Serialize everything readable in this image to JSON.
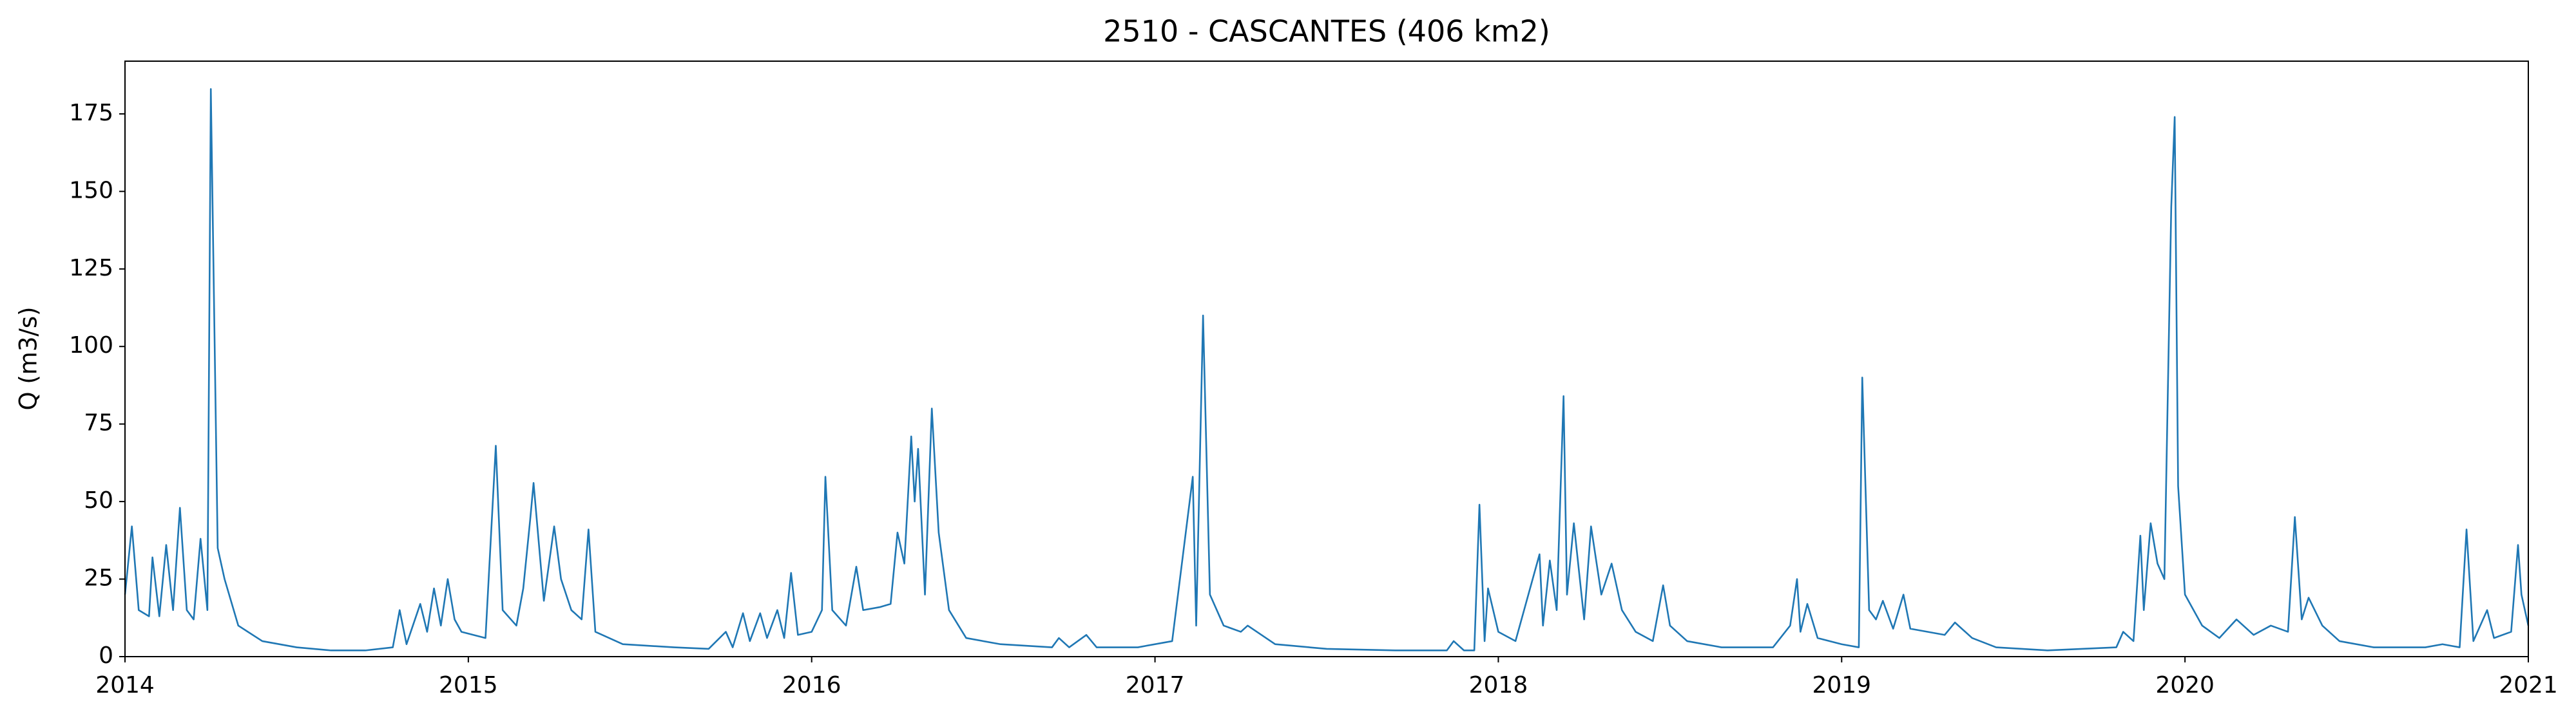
{
  "chart_data": {
    "type": "line",
    "title": "2510 - CASCANTES (406 km2)",
    "y_label": "Q (m3/s)",
    "color": "#1f77b4",
    "xlim": [
      2014,
      2021
    ],
    "xticks": [
      2014,
      2015,
      2016,
      2017,
      2018,
      2019,
      2020,
      2021
    ],
    "ylim": [
      0,
      192
    ],
    "yticks": [
      0,
      25,
      50,
      75,
      100,
      125,
      150,
      175
    ],
    "grid": false,
    "x": [
      2014.0,
      2014.02,
      2014.04,
      2014.07,
      2014.08,
      2014.1,
      2014.12,
      2014.14,
      2014.16,
      2014.18,
      2014.2,
      2014.22,
      2014.24,
      2014.25,
      2014.27,
      2014.29,
      2014.33,
      2014.4,
      2014.5,
      2014.6,
      2014.7,
      2014.78,
      2014.8,
      2014.82,
      2014.86,
      2014.88,
      2014.9,
      2014.92,
      2014.94,
      2014.96,
      2014.98,
      2015.05,
      2015.08,
      2015.1,
      2015.14,
      2015.16,
      2015.18,
      2015.19,
      2015.22,
      2015.25,
      2015.27,
      2015.3,
      2015.33,
      2015.35,
      2015.37,
      2015.45,
      2015.6,
      2015.7,
      2015.75,
      2015.77,
      2015.8,
      2015.82,
      2015.85,
      2015.87,
      2015.9,
      2015.92,
      2015.94,
      2015.96,
      2016.0,
      2016.03,
      2016.04,
      2016.06,
      2016.1,
      2016.13,
      2016.15,
      2016.2,
      2016.23,
      2016.25,
      2016.27,
      2016.29,
      2016.3,
      2016.31,
      2016.33,
      2016.35,
      2016.37,
      2016.4,
      2016.45,
      2016.55,
      2016.7,
      2016.72,
      2016.75,
      2016.8,
      2016.83,
      2016.95,
      2017.05,
      2017.11,
      2017.12,
      2017.14,
      2017.16,
      2017.2,
      2017.25,
      2017.27,
      2017.35,
      2017.5,
      2017.7,
      2017.85,
      2017.87,
      2017.9,
      2017.93,
      2017.945,
      2017.96,
      2017.97,
      2018.0,
      2018.05,
      2018.12,
      2018.13,
      2018.15,
      2018.17,
      2018.19,
      2018.2,
      2018.22,
      2018.25,
      2018.27,
      2018.3,
      2018.33,
      2018.36,
      2018.4,
      2018.45,
      2018.48,
      2018.5,
      2018.55,
      2018.65,
      2018.8,
      2018.85,
      2018.87,
      2018.88,
      2018.9,
      2018.93,
      2019.0,
      2019.05,
      2019.06,
      2019.08,
      2019.1,
      2019.12,
      2019.15,
      2019.18,
      2019.2,
      2019.3,
      2019.33,
      2019.38,
      2019.45,
      2019.6,
      2019.8,
      2019.82,
      2019.85,
      2019.87,
      2019.88,
      2019.9,
      2019.92,
      2019.94,
      2019.96,
      2019.97,
      2019.98,
      2020.0,
      2020.05,
      2020.1,
      2020.15,
      2020.2,
      2020.25,
      2020.3,
      2020.32,
      2020.34,
      2020.36,
      2020.4,
      2020.45,
      2020.55,
      2020.7,
      2020.75,
      2020.8,
      2020.82,
      2020.84,
      2020.88,
      2020.9,
      2020.95,
      2020.97,
      2020.98,
      2021.0
    ],
    "values": [
      20,
      42,
      15,
      13,
      32,
      13,
      36,
      15,
      48,
      15,
      12,
      38,
      15,
      183,
      35,
      25,
      10,
      5,
      3,
      2,
      2,
      3,
      15,
      4,
      17,
      8,
      22,
      10,
      25,
      12,
      8,
      6,
      68,
      15,
      10,
      22,
      44,
      56,
      18,
      42,
      25,
      15,
      12,
      41,
      8,
      4,
      3,
      2.5,
      8,
      3,
      14,
      5,
      14,
      6,
      15,
      6,
      27,
      7,
      8,
      15,
      58,
      15,
      10,
      29,
      15,
      16,
      17,
      40,
      30,
      71,
      50,
      67,
      20,
      80,
      40,
      15,
      6,
      4,
      3,
      6,
      3,
      7,
      3,
      3,
      5,
      58,
      10,
      110,
      20,
      10,
      8,
      10,
      4,
      2.5,
      2,
      2,
      5,
      2,
      2,
      49,
      5,
      22,
      8,
      5,
      33,
      10,
      31,
      15,
      84,
      20,
      43,
      12,
      42,
      20,
      30,
      15,
      8,
      5,
      23,
      10,
      5,
      3,
      3,
      10,
      25,
      8,
      17,
      6,
      4,
      3,
      90,
      15,
      12,
      18,
      9,
      20,
      9,
      7,
      11,
      6,
      3,
      2,
      3,
      8,
      5,
      39,
      15,
      43,
      30,
      25,
      145,
      174,
      55,
      20,
      10,
      6,
      12,
      7,
      10,
      8,
      45,
      12,
      19,
      10,
      5,
      3,
      3,
      4,
      3,
      41,
      5,
      15,
      6,
      8,
      36,
      20,
      10
    ]
  }
}
